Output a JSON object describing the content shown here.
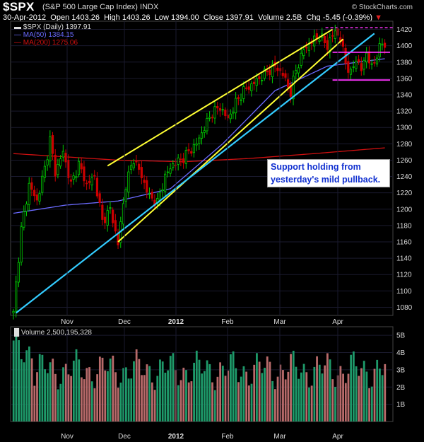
{
  "header": {
    "symbol": "$SPX",
    "description": "(S&P 500 Large Cap Index)",
    "exchange": "INDX",
    "brand": "© StockCharts.com",
    "date": "30-Apr-2012",
    "open_label": "Open",
    "open": "1403.26",
    "high_label": "High",
    "high": "1403.26",
    "low_label": "Low",
    "low": "1394.00",
    "close_label": "Close",
    "close": "1397.91",
    "volume_label": "Volume",
    "volume": "2.5B",
    "chg_label": "Chg",
    "chg": "-5.45 (-0.39%)"
  },
  "legend": {
    "price": "$SPX (Daily) 1397.91",
    "ma50": "MA(50) 1384.15",
    "ma200": "MA(200) 1275.06",
    "volume": "Volume 2,500,195,328"
  },
  "annotation": {
    "line1": "Support holding from",
    "line2": "yesterday's mild pullback."
  },
  "colors": {
    "background": "#000000",
    "grid": "#1a1a2e",
    "up_candle": "#00cc00",
    "down_candle": "#cc0000",
    "ma50": "#6a6aff",
    "ma200": "#d01010",
    "wedge": "#ffff33",
    "trendline": "#33ccff",
    "range": "#ff33ff",
    "volume_up": "#1e9a6a",
    "volume_down": "#b86a6a"
  },
  "chart_data": [
    {
      "type": "candlestick",
      "title": "$SPX (Daily)",
      "x_tick_labels": [
        "Nov",
        "Dec",
        "2012",
        "Feb",
        "Mar",
        "Apr"
      ],
      "y_tick_labels": [
        "1080",
        "1100",
        "1120",
        "1140",
        "1160",
        "1180",
        "1200",
        "1220",
        "1240",
        "1260",
        "1280",
        "1300",
        "1320",
        "1340",
        "1360",
        "1380",
        "1400",
        "1420"
      ],
      "ylim": [
        1070,
        1430
      ],
      "anchors": [
        {
          "day": 0,
          "close": 1075
        },
        {
          "day": 3,
          "close": 1175
        },
        {
          "day": 6,
          "close": 1230
        },
        {
          "day": 9,
          "close": 1210
        },
        {
          "day": 12,
          "close": 1250
        },
        {
          "day": 14,
          "close": 1285
        },
        {
          "day": 16,
          "close": 1245
        },
        {
          "day": 19,
          "close": 1270
        },
        {
          "day": 22,
          "close": 1230
        },
        {
          "day": 25,
          "close": 1255
        },
        {
          "day": 28,
          "close": 1230
        },
        {
          "day": 31,
          "close": 1240
        },
        {
          "day": 34,
          "close": 1185
        },
        {
          "day": 37,
          "close": 1200
        },
        {
          "day": 40,
          "close": 1158
        },
        {
          "day": 43,
          "close": 1230
        },
        {
          "day": 46,
          "close": 1262
        },
        {
          "day": 49,
          "close": 1240
        },
        {
          "day": 52,
          "close": 1215
        },
        {
          "day": 55,
          "close": 1208
        },
        {
          "day": 58,
          "close": 1240
        },
        {
          "day": 61,
          "close": 1255
        },
        {
          "day": 64,
          "close": 1260
        },
        {
          "day": 67,
          "close": 1270
        },
        {
          "day": 70,
          "close": 1280
        },
        {
          "day": 73,
          "close": 1300
        },
        {
          "day": 76,
          "close": 1318
        },
        {
          "day": 79,
          "close": 1325
        },
        {
          "day": 82,
          "close": 1310
        },
        {
          "day": 85,
          "close": 1330
        },
        {
          "day": 88,
          "close": 1345
        },
        {
          "day": 91,
          "close": 1352
        },
        {
          "day": 94,
          "close": 1360
        },
        {
          "day": 97,
          "close": 1368
        },
        {
          "day": 100,
          "close": 1375
        },
        {
          "day": 103,
          "close": 1365
        },
        {
          "day": 106,
          "close": 1343
        },
        {
          "day": 108,
          "close": 1370
        },
        {
          "day": 111,
          "close": 1395
        },
        {
          "day": 114,
          "close": 1405
        },
        {
          "day": 117,
          "close": 1412
        },
        {
          "day": 120,
          "close": 1400
        },
        {
          "day": 123,
          "close": 1418
        },
        {
          "day": 125,
          "close": 1408
        },
        {
          "day": 127,
          "close": 1380
        },
        {
          "day": 129,
          "close": 1365
        },
        {
          "day": 131,
          "close": 1385
        },
        {
          "day": 133,
          "close": 1370
        },
        {
          "day": 135,
          "close": 1392
        },
        {
          "day": 137,
          "close": 1372
        },
        {
          "day": 139,
          "close": 1390
        },
        {
          "day": 141,
          "close": 1403
        },
        {
          "day": 142,
          "close": 1397.91
        }
      ],
      "ma50": [
        {
          "day": 0,
          "value": 1195
        },
        {
          "day": 20,
          "value": 1205
        },
        {
          "day": 40,
          "value": 1210
        },
        {
          "day": 60,
          "value": 1225
        },
        {
          "day": 80,
          "value": 1280
        },
        {
          "day": 100,
          "value": 1345
        },
        {
          "day": 120,
          "value": 1375
        },
        {
          "day": 142,
          "value": 1384.15
        }
      ],
      "ma200": [
        {
          "day": 0,
          "value": 1268
        },
        {
          "day": 15,
          "value": 1265
        },
        {
          "day": 40,
          "value": 1260
        },
        {
          "day": 65,
          "value": 1258
        },
        {
          "day": 90,
          "value": 1262
        },
        {
          "day": 115,
          "value": 1268
        },
        {
          "day": 142,
          "value": 1275.06
        }
      ],
      "wedge_upper": [
        {
          "day": 36,
          "price": 1253
        },
        {
          "day": 122,
          "price": 1420
        }
      ],
      "wedge_lower": [
        {
          "day": 40,
          "price": 1160
        },
        {
          "day": 126,
          "price": 1408
        }
      ],
      "trendline": [
        {
          "day": 1,
          "price": 1073
        },
        {
          "day": 138,
          "price": 1415
        }
      ],
      "range_top_dashed": 1422,
      "range_upper": 1392,
      "range_lower": 1358,
      "range_days": [
        122,
        144
      ]
    },
    {
      "type": "bar",
      "title": "Volume",
      "y_tick_labels": [
        "1B",
        "2B",
        "3B",
        "4B",
        "5B"
      ],
      "ylim": [
        0,
        5.5
      ],
      "unit": "billions",
      "volume_avg": 3.0
    }
  ]
}
